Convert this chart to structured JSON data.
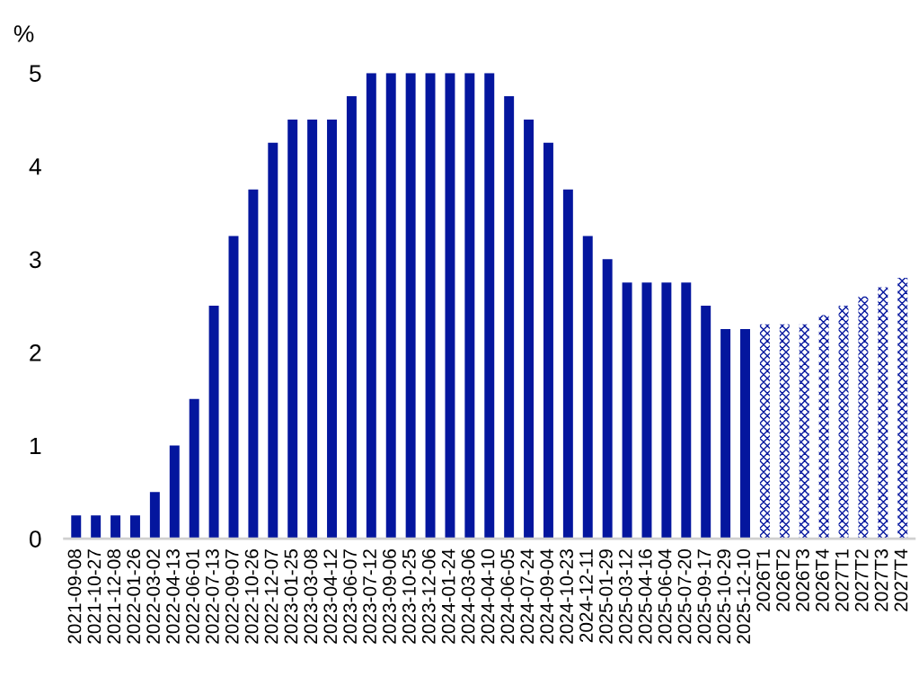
{
  "chart_data": {
    "type": "bar",
    "ylabel": "%",
    "categories": [
      "2021-09-08",
      "2021-10-27",
      "2021-12-08",
      "2022-01-26",
      "2022-03-02",
      "2022-04-13",
      "2022-06-01",
      "2022-07-13",
      "2022-09-07",
      "2022-10-26",
      "2022-12-07",
      "2023-01-25",
      "2023-03-08",
      "2023-04-12",
      "2023-06-07",
      "2023-07-12",
      "2023-09-06",
      "2023-10-25",
      "2023-12-06",
      "2024-01-24",
      "2024-03-06",
      "2024-04-10",
      "2024-06-05",
      "2024-07-24",
      "2024-09-04",
      "2024-10-23",
      "2024-12-11",
      "2025-01-29",
      "2025-03-12",
      "2025-04-16",
      "2025-06-04",
      "2025-07-20",
      "2025-09-17",
      "2025-10-29",
      "2025-12-10",
      "2026T1",
      "2026T2",
      "2026T3",
      "2026T4",
      "2027T1",
      "2027T2",
      "2027T3",
      "2027T4"
    ],
    "series": [
      {
        "color": "#04169e",
        "values": [
          0.25,
          0.25,
          0.25,
          0.25,
          0.5,
          1,
          1.5,
          2.5,
          3.25,
          3.75,
          4.25,
          4.5,
          4.5,
          4.5,
          4.75,
          5,
          5,
          5,
          5,
          5,
          5,
          5,
          4.75,
          4.5,
          4.25,
          3.75,
          3.25,
          3.0,
          2.75,
          2.75,
          2.75,
          2.75,
          2.5,
          2.25,
          2.25,
          null,
          null,
          null,
          null,
          null,
          null,
          null,
          null
        ]
      },
      {
        "color": "#04169e",
        "values": [
          null,
          null,
          null,
          null,
          null,
          null,
          null,
          null,
          null,
          null,
          null,
          null,
          null,
          null,
          null,
          null,
          null,
          null,
          null,
          null,
          null,
          null,
          null,
          null,
          null,
          null,
          null,
          null,
          null,
          null,
          null,
          null,
          null,
          null,
          null,
          2.3,
          2.3,
          2.3,
          2.4,
          2.5,
          2.6,
          2.7,
          2.8
        ]
      }
    ],
    "ylim": [
      0,
      5
    ],
    "yticks": [
      0,
      1,
      2,
      3,
      4,
      5
    ],
    "grid": false,
    "legend": false
  }
}
